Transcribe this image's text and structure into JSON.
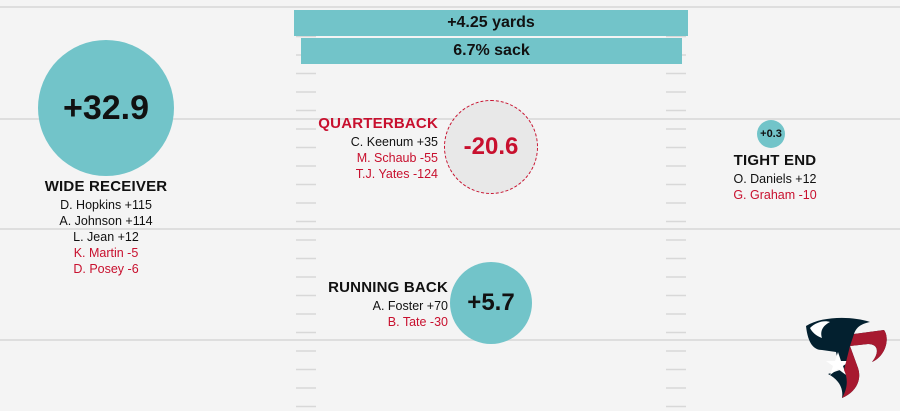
{
  "summary": {
    "yards_label": "+4.25 yards",
    "sack_label": "6.7% sack"
  },
  "wide_receiver": {
    "value": "+32.9",
    "title": "WIDE RECEIVER",
    "players": [
      {
        "text": "D. Hopkins +115",
        "trend": "up"
      },
      {
        "text": "A. Johnson +114",
        "trend": "up"
      },
      {
        "text": "L. Jean +12",
        "trend": "up"
      },
      {
        "text": "K. Martin -5",
        "trend": "down"
      },
      {
        "text": "D. Posey -6",
        "trend": "down"
      }
    ]
  },
  "quarterback": {
    "value": "-20.6",
    "title": "QUARTERBACK",
    "players": [
      {
        "text": "C. Keenum +35",
        "trend": "up"
      },
      {
        "text": "M. Schaub -55",
        "trend": "down"
      },
      {
        "text": "T.J. Yates -124",
        "trend": "down"
      }
    ]
  },
  "running_back": {
    "value": "+5.7",
    "title": "RUNNING BACK",
    "players": [
      {
        "text": "A. Foster +70",
        "trend": "up"
      },
      {
        "text": "B. Tate -30",
        "trend": "down"
      }
    ]
  },
  "tight_end": {
    "value": "+0.3",
    "title": "TIGHT END",
    "players": [
      {
        "text": "O. Daniels +12",
        "trend": "up"
      },
      {
        "text": "G. Graham -10",
        "trend": "down"
      }
    ]
  },
  "colors": {
    "teal": "#72c4c9",
    "negative_red": "#c8102e",
    "positive_text": "#111111",
    "field_lines": "#dedede",
    "logo_navy": "#03202f",
    "logo_red": "#a71930"
  },
  "logo": {
    "icon": "houston-texans-logo-icon"
  }
}
